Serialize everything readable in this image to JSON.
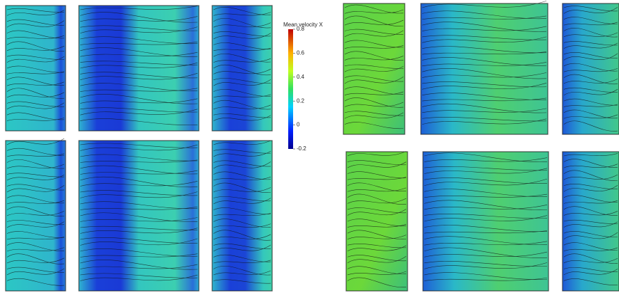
{
  "colorbar": {
    "title": "Mean velocity X",
    "lim": [
      -0.2,
      0.8
    ],
    "ticks": [
      0.8,
      0.6,
      0.4,
      0.2,
      0,
      -0.2
    ]
  }
}
